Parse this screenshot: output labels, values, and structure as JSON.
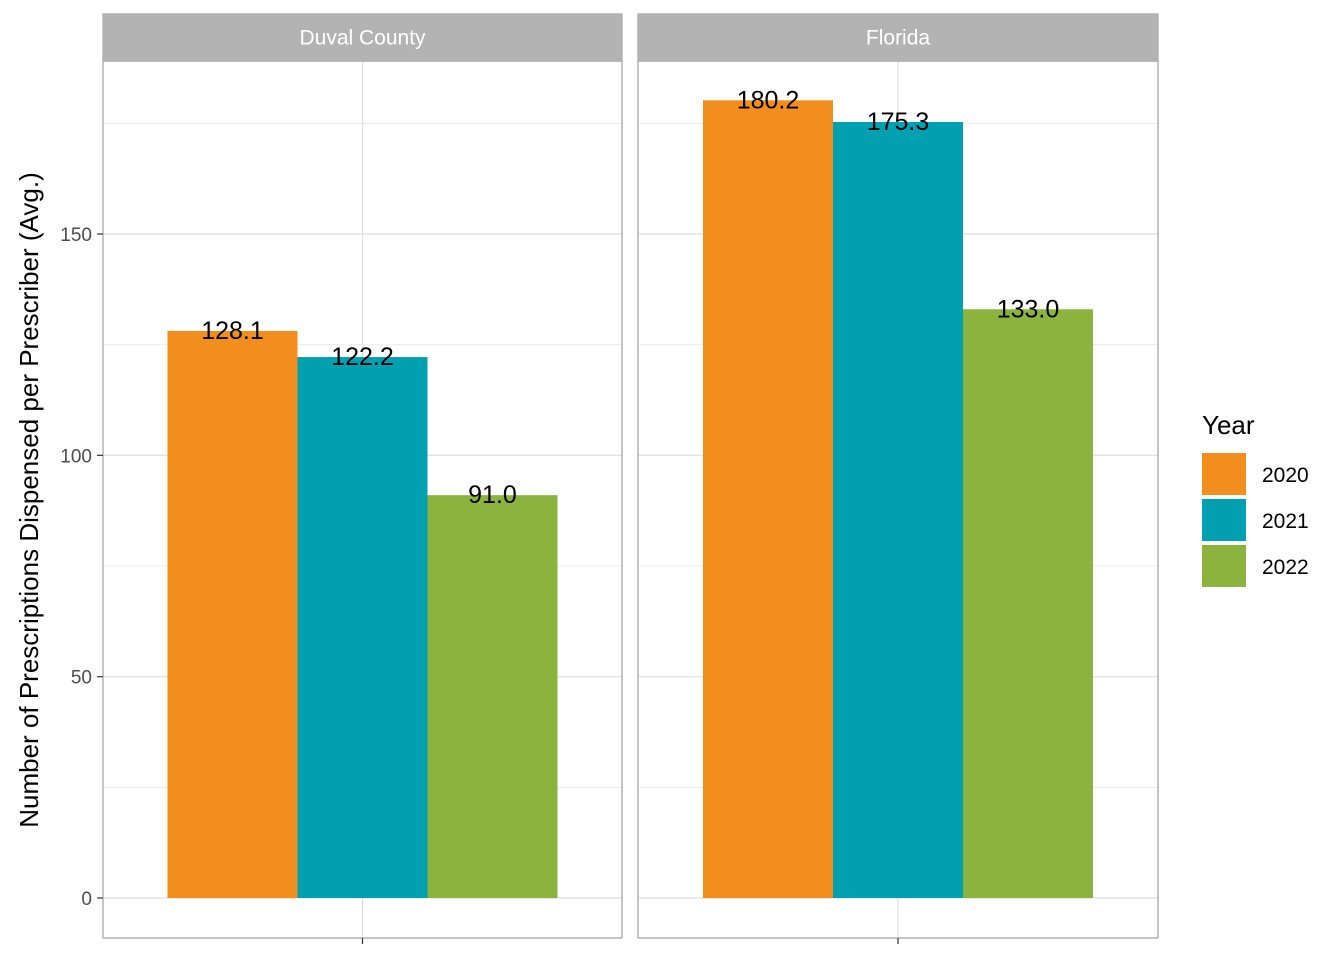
{
  "chart_data": {
    "type": "bar",
    "ylabel": "Number of Prescriptions Dispensed per Prescriber (Avg.)",
    "xlabel": "",
    "ylim": [
      0,
      185
    ],
    "y_ticks": [
      0,
      50,
      100,
      150
    ],
    "grid": true,
    "legend": {
      "title": "Year",
      "placement": "right"
    },
    "facets": [
      {
        "label": "Duval County",
        "series": [
          {
            "name": "2020",
            "value": 128.1,
            "label": "128.1"
          },
          {
            "name": "2021",
            "value": 122.2,
            "label": "122.2"
          },
          {
            "name": "2022",
            "value": 91.0,
            "label": "91.0"
          }
        ]
      },
      {
        "label": "Florida",
        "series": [
          {
            "name": "2020",
            "value": 180.2,
            "label": "180.2"
          },
          {
            "name": "2021",
            "value": 175.3,
            "label": "175.3"
          },
          {
            "name": "2022",
            "value": 133.0,
            "label": "133.0"
          }
        ]
      }
    ],
    "series_colors": {
      "2020": "#F28E1E",
      "2021": "#00A0B0",
      "2022": "#8DB33F"
    }
  }
}
